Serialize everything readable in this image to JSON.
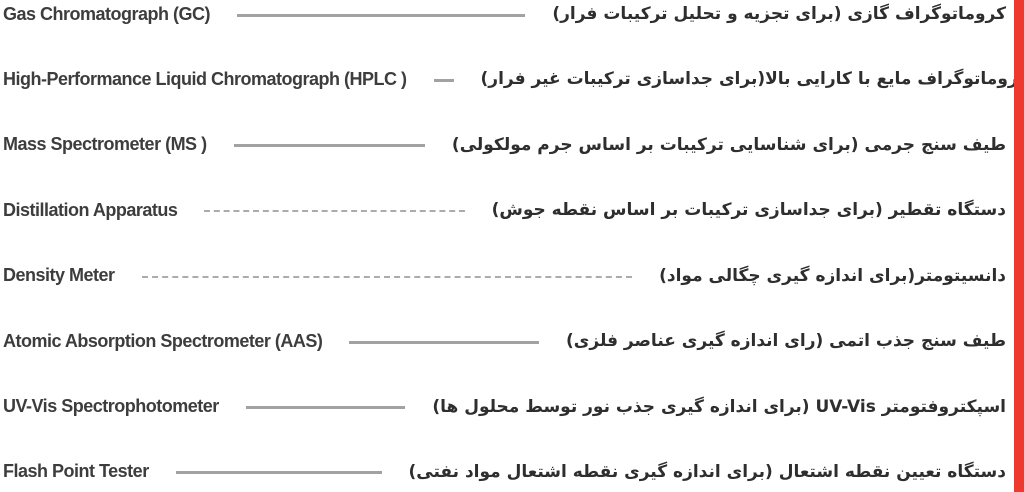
{
  "page": {
    "background": "#ffffff",
    "accent_bar_color": "#ee392e",
    "line_color_solid": "#a2a2a2",
    "line_color_dashed": "#aeaaab"
  },
  "rows": [
    {
      "english": "Gas Chromatograph (GC)",
      "persian": "کروماتوگراف گازی (برای تجزیه و تحلیل ترکیبات فرار)",
      "line_style": "solid"
    },
    {
      "english": "High-Performance Liquid Chromatograph (HPLC )",
      "persian": "کروماتوگراف مایع با کارایی بالا(برای جداسازی ترکیبات غیر فرار)",
      "line_style": "solid"
    },
    {
      "english": "Mass Spectrometer (MS )",
      "persian": "طیف سنج جرمی (برای شناسایی ترکیبات بر اساس جرم مولکولی)",
      "line_style": "solid"
    },
    {
      "english": "Distillation Apparatus",
      "persian": "دستگاه تقطیر (برای جداسازی ترکیبات بر اساس نقطه جوش)",
      "line_style": "dashed"
    },
    {
      "english": "Density Meter",
      "persian": "دانسیتومتر(برای اندازه گیری چگالی مواد)",
      "line_style": "dashed"
    },
    {
      "english": "Atomic Absorption Spectrometer (AAS)",
      "persian": "طیف سنج جذب اتمی (رای اندازه گیری عناصر فلزی)",
      "line_style": "solid"
    },
    {
      "english": "UV-Vis Spectrophotometer",
      "persian": "اسپکتروفتومتر UV-Vis (برای اندازه گیری جذب نور توسط محلول ها)",
      "line_style": "solid"
    },
    {
      "english": "Flash Point Tester",
      "persian": "دستگاه تعیین نقطه اشتعال (برای اندازه گیری نقطه اشتعال مواد نفتی)",
      "line_style": "solid"
    }
  ]
}
